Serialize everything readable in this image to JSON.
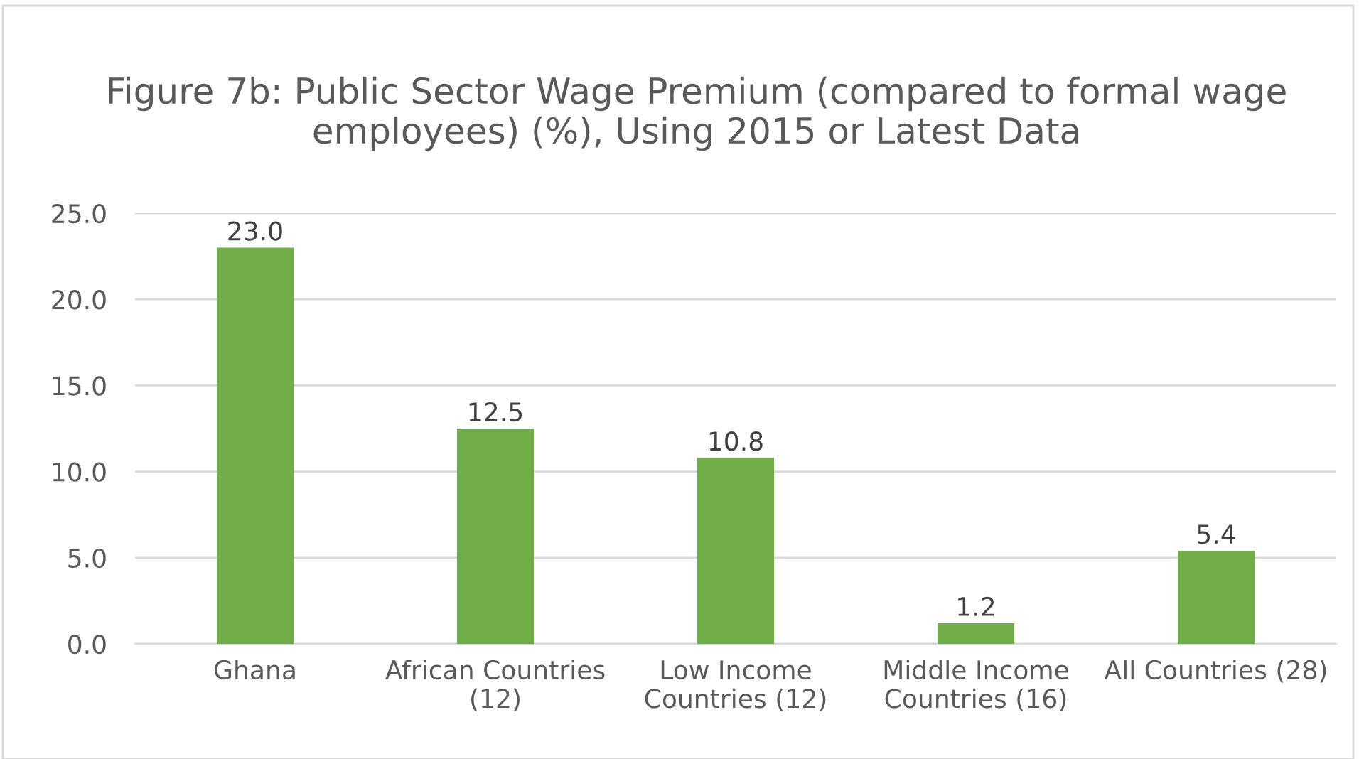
{
  "chart_data": {
    "type": "bar",
    "title": "Figure 7b: Public Sector Wage Premium (compared to formal wage employees) (%), Using 2015 or Latest Data",
    "categories": [
      "Ghana",
      "African Countries\n(12)",
      "Low Income\nCountries (12)",
      "Middle Income\nCountries (16)",
      "All Countries (28)"
    ],
    "values": [
      23.0,
      12.5,
      10.8,
      1.2,
      5.4
    ],
    "value_labels": [
      "23.0",
      "12.5",
      "10.8",
      "1.2",
      "5.4"
    ],
    "color": "#70ad47",
    "ylim": [
      0,
      25
    ],
    "yticks": [
      {
        "value": 0,
        "label": "0.0"
      },
      {
        "value": 5,
        "label": "5.0"
      },
      {
        "value": 10,
        "label": "10.0"
      },
      {
        "value": 15,
        "label": "15.0"
      },
      {
        "value": 20,
        "label": "20.0"
      },
      {
        "value": 25,
        "label": "25.0"
      }
    ],
    "grid": "y",
    "legend": false
  }
}
